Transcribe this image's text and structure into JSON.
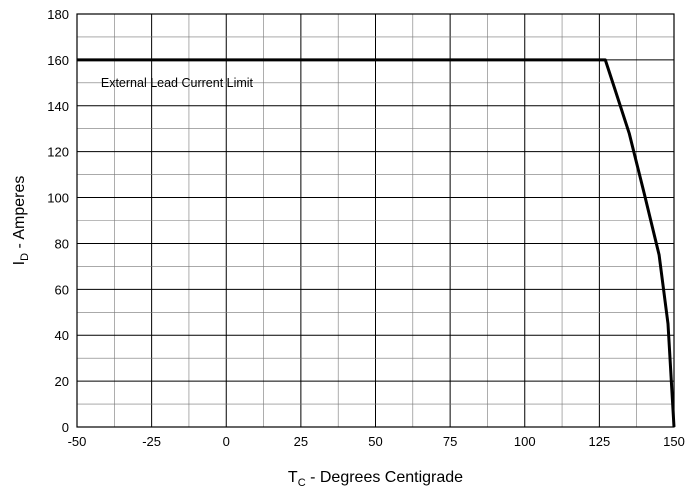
{
  "chart_data": {
    "type": "line",
    "title": "",
    "xlabel": {
      "main": "T",
      "sub": "C",
      "rest": " - Degrees Centigrade"
    },
    "ylabel": {
      "main": "I",
      "sub": "D",
      "rest": " - Amperes"
    },
    "xlim": [
      -50,
      150
    ],
    "ylim": [
      0,
      180
    ],
    "xticks": [
      "-50",
      "-25",
      "0",
      "25",
      "50",
      "75",
      "100",
      "125",
      "150"
    ],
    "yticks": [
      "0",
      "20",
      "40",
      "60",
      "80",
      "100",
      "120",
      "140",
      "160",
      "180"
    ],
    "grid": true,
    "annotations": [
      {
        "text": "External Lead Current Limit",
        "x": -42,
        "y": 150
      }
    ],
    "series": [
      {
        "color": "#000000",
        "x": [
          -50,
          127,
          130,
          135,
          140,
          145,
          148,
          150
        ],
        "y": [
          160,
          160,
          148,
          128,
          102,
          75,
          45,
          0
        ]
      }
    ]
  }
}
